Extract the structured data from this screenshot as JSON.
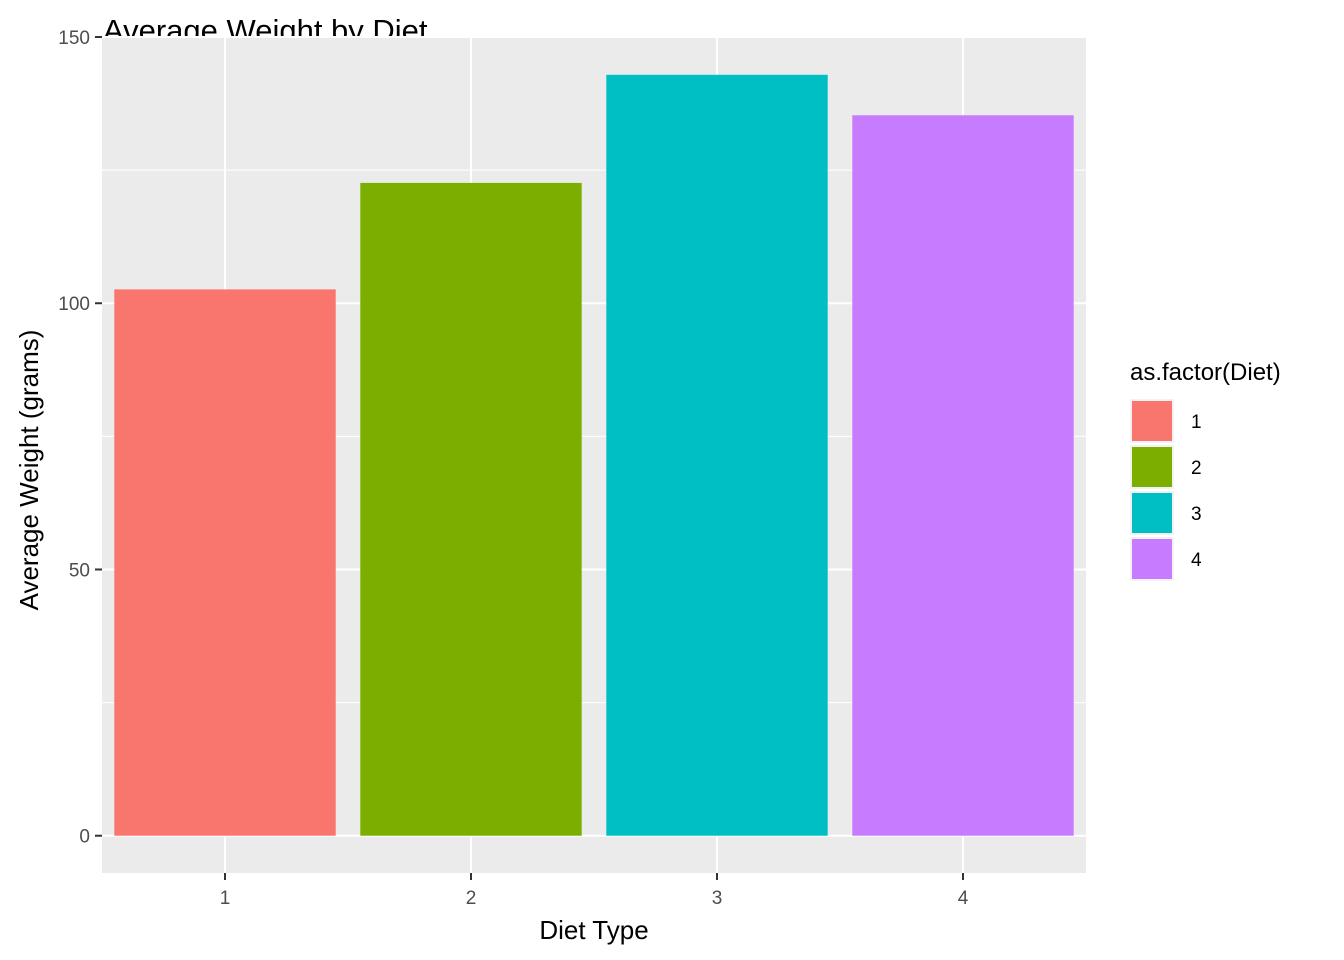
{
  "chart_data": {
    "type": "bar",
    "title": "Average Weight by Diet",
    "xlabel": "Diet Type",
    "ylabel": "Average Weight (grams)",
    "categories": [
      "1",
      "2",
      "3",
      "4"
    ],
    "values": [
      102.6,
      122.6,
      142.9,
      135.3
    ],
    "colors": [
      "#F8766D",
      "#7CAE00",
      "#00BFC4",
      "#C77CFF"
    ],
    "ylim": [
      -7,
      150
    ],
    "yticks": [
      0,
      50,
      100,
      150
    ],
    "yticks_minor": [
      25,
      75,
      125
    ],
    "grid": true,
    "panel_background": "#EBEBEB",
    "legend": {
      "title": "as.factor(Diet)",
      "position": "right",
      "entries": [
        "1",
        "2",
        "3",
        "4"
      ]
    }
  }
}
